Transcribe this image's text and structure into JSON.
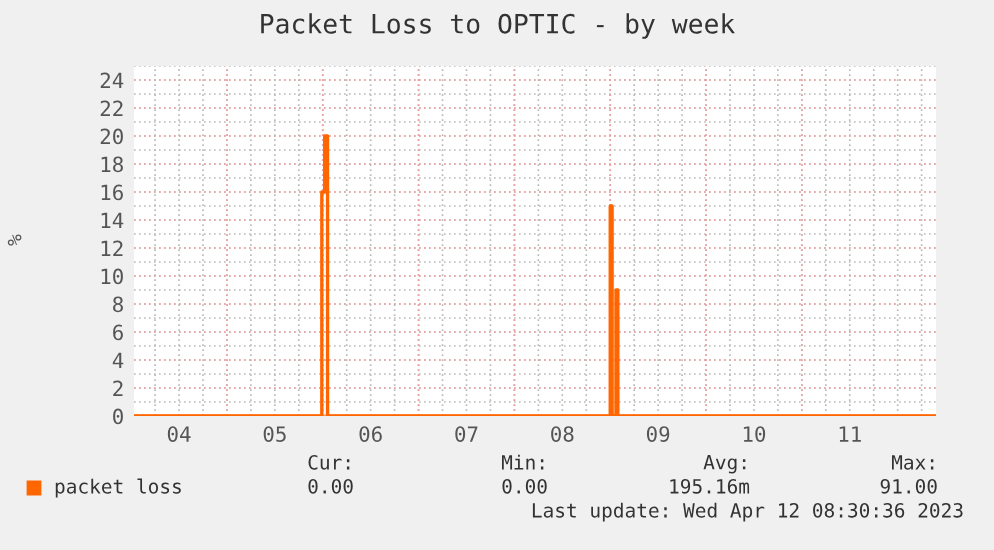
{
  "chart_data": {
    "type": "step",
    "title": "Packet Loss to OPTIC - by week",
    "ylabel": "%",
    "series": [
      {
        "name": "packet loss",
        "color": "#ff6600",
        "x": [
          4.03,
          5.99,
          6.02,
          6.05,
          9.0,
          9.02,
          9.06,
          9.08,
          12.4
        ],
        "values": [
          0,
          16,
          20,
          0,
          15,
          0,
          9,
          0,
          0
        ]
      }
    ],
    "xlim": [
      4.03,
      12.4
    ],
    "xticks": [
      {
        "value": 4.5,
        "label": "04"
      },
      {
        "value": 5.5,
        "label": "05"
      },
      {
        "value": 6.5,
        "label": "06"
      },
      {
        "value": 7.5,
        "label": "07"
      },
      {
        "value": 8.5,
        "label": "08"
      },
      {
        "value": 9.5,
        "label": "09"
      },
      {
        "value": 10.5,
        "label": "10"
      },
      {
        "value": 11.5,
        "label": "11"
      }
    ],
    "ylim": [
      0,
      25
    ],
    "yticks": [
      0,
      2,
      4,
      6,
      8,
      10,
      12,
      14,
      16,
      18,
      20,
      22,
      24
    ],
    "grid": true,
    "legend": "bottom",
    "annotations": [
      "Cur:",
      "Min:",
      "Avg:",
      "Max:",
      "0.00",
      "0.00",
      "195.16m",
      "91.00",
      "Last update: Wed Apr 12 08:30:36 2023"
    ]
  }
}
